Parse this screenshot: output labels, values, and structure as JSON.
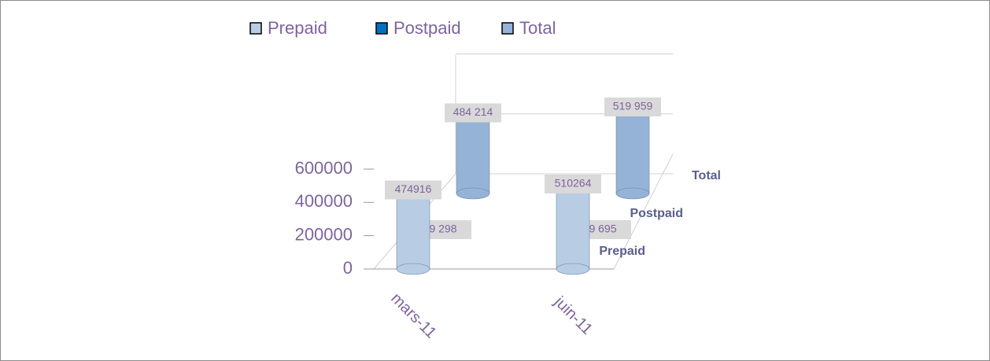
{
  "chart_data": {
    "type": "bar",
    "categories": [
      "mars-11",
      "juin-11"
    ],
    "series": [
      {
        "name": "Prepaid",
        "color": "#b8cce4",
        "values": [
          474916,
          510264
        ]
      },
      {
        "name": "Postpaid",
        "color": "#0070c0",
        "values": [
          9298,
          9695
        ],
        "value_labels": [
          "9 298",
          "9 695"
        ]
      },
      {
        "name": "Total",
        "color": "#95b3d7",
        "values": [
          484214,
          519959
        ],
        "value_labels": [
          "484 214",
          "519 959"
        ]
      }
    ],
    "ylim": [
      0,
      600000
    ],
    "yticks": [
      0,
      200000,
      400000,
      600000
    ],
    "grid": true,
    "legend": "top"
  }
}
